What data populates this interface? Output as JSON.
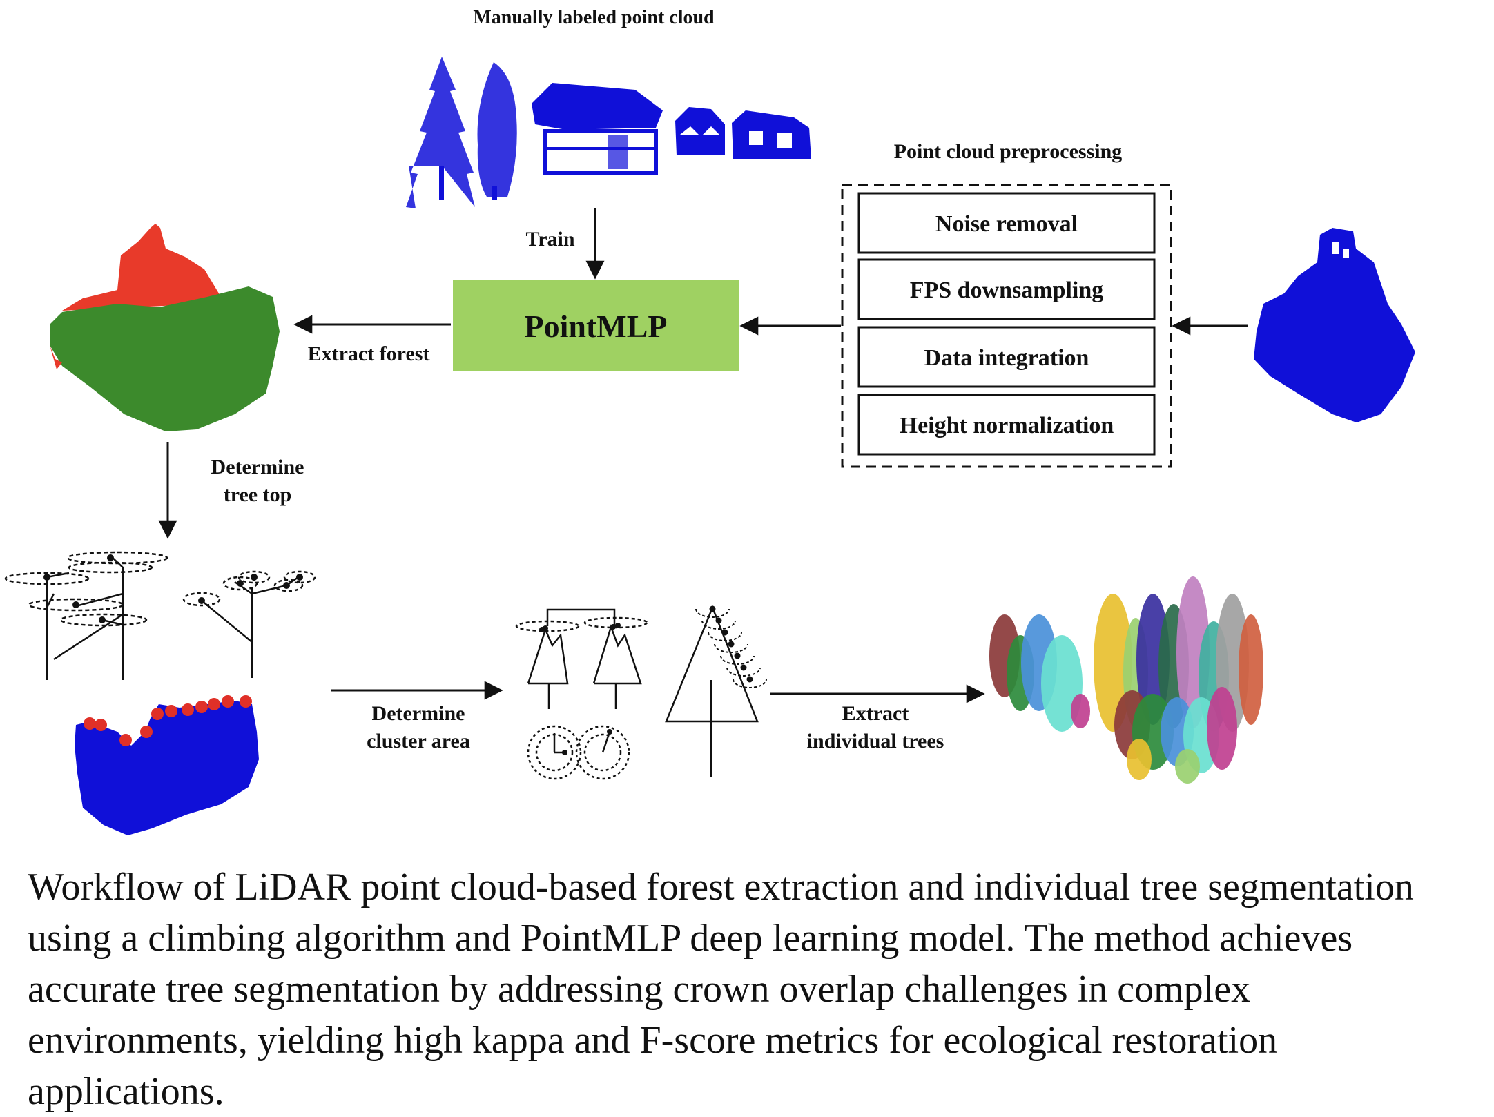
{
  "labels": {
    "manual": "Manually labeled point cloud",
    "preproc_title": "Point cloud preprocessing",
    "train": "Train",
    "model": "PointMLP",
    "extract_forest": "Extract forest",
    "det_top_1": "Determine",
    "det_top_2": "tree top",
    "det_cluster_1": "Determine",
    "det_cluster_2": "cluster area",
    "extract_trees_1": "Extract",
    "extract_trees_2": "individual trees"
  },
  "preprocessing_steps": [
    "Noise removal",
    "FPS downsampling",
    "Data integration",
    "Height normalization"
  ],
  "colors": {
    "model_fill": "#9fd162",
    "point_blue": "#1010d8",
    "building_red": "#e83a2a",
    "forest_green": "#3c8a2c",
    "treetop_red": "#e03028",
    "segment_colors": [
      "#8b3a3a",
      "#2d8b3c",
      "#4a90d9",
      "#69e0d0",
      "#c04090",
      "#e8c030",
      "#9ad070",
      "#3a30a0",
      "#2a6a4a",
      "#c080c0",
      "#40b0a0",
      "#a0a0a0",
      "#d06040"
    ]
  },
  "caption": "Workflow of LiDAR point cloud-based forest extraction and individual tree segmentation using a climbing algorithm and PointMLP deep learning model. The method achieves accurate tree segmentation by addressing crown overlap challenges in complex environments, yielding high kappa and F-score metrics for ecological restoration applications."
}
